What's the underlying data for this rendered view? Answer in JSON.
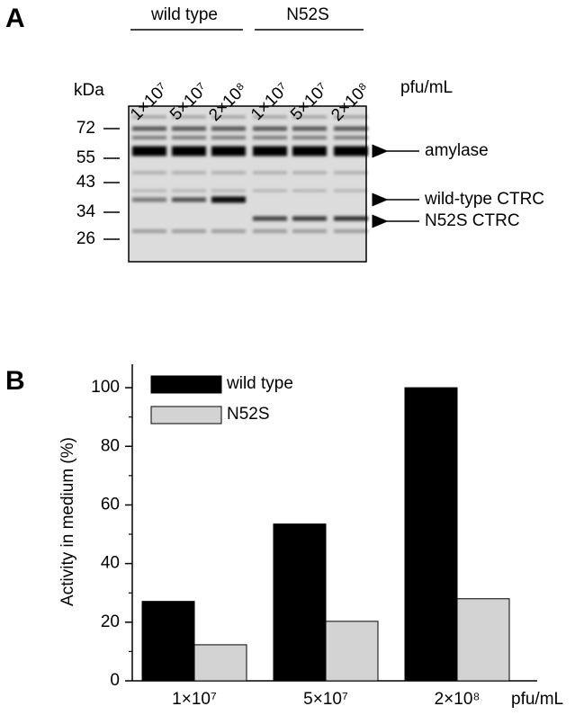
{
  "panel_a": {
    "label": "A",
    "groups": [
      "wild type",
      "N52S"
    ],
    "lanes": [
      "1×10⁷",
      "5×10⁷",
      "2×10⁸",
      "1×10⁷",
      "5×10⁷",
      "2×10⁸"
    ],
    "unit": "pfu/mL",
    "kda_label": "kDa",
    "markers": [
      72,
      55,
      43,
      34,
      26
    ],
    "annotations": [
      "amylase",
      "wild-type CTRC",
      "N52S CTRC"
    ]
  },
  "chart_data": {
    "type": "bar",
    "panel_label": "B",
    "ylabel": "Activity in medium (%)",
    "xlabel": "pfu/mL",
    "categories": [
      "1×10⁷",
      "5×10⁷",
      "2×10⁸"
    ],
    "series": [
      {
        "name": "wild type",
        "color": "#000000",
        "values": [
          27.1,
          53.5,
          100
        ]
      },
      {
        "name": "N52S",
        "color": "#d3d3d3",
        "values": [
          12.3,
          20.3,
          28
        ]
      }
    ],
    "ylim": [
      0,
      108
    ],
    "yticks": [
      0,
      20,
      40,
      60,
      80,
      100
    ],
    "minor_yticks": [
      10,
      30,
      50,
      70,
      90
    ]
  }
}
